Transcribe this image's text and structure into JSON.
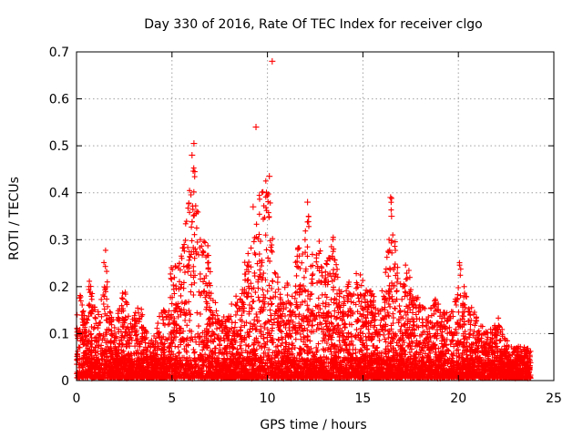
{
  "chart_data": {
    "type": "scatter",
    "title": "Day 330 of 2016, Rate Of TEC Index for receiver clgo",
    "xlabel": "GPS time / hours",
    "ylabel": "ROTI / TECUs",
    "xlim": [
      0,
      25
    ],
    "ylim": [
      0,
      0.7
    ],
    "x_ticks": [
      "0",
      "5",
      "10",
      "15",
      "20",
      "25"
    ],
    "y_ticks": [
      "0",
      "0.1",
      "0.2",
      "0.3",
      "0.4",
      "0.5",
      "0.6",
      "0.7"
    ],
    "grid": true,
    "marker": "+",
    "color": "#ff0000",
    "series": [
      {
        "name": "ROTI",
        "upper_envelope": [
          [
            0.0,
            0.14
          ],
          [
            0.2,
            0.18
          ],
          [
            0.5,
            0.12
          ],
          [
            0.7,
            0.23
          ],
          [
            0.9,
            0.16
          ],
          [
            1.1,
            0.13
          ],
          [
            1.4,
            0.25
          ],
          [
            1.5,
            0.29
          ],
          [
            1.7,
            0.15
          ],
          [
            2.0,
            0.12
          ],
          [
            2.3,
            0.16
          ],
          [
            2.5,
            0.2
          ],
          [
            2.8,
            0.12
          ],
          [
            3.0,
            0.14
          ],
          [
            3.4,
            0.16
          ],
          [
            3.7,
            0.09
          ],
          [
            4.0,
            0.08
          ],
          [
            4.3,
            0.13
          ],
          [
            4.6,
            0.15
          ],
          [
            4.8,
            0.16
          ],
          [
            5.0,
            0.28
          ],
          [
            5.3,
            0.23
          ],
          [
            5.6,
            0.3
          ],
          [
            5.8,
            0.35
          ],
          [
            6.0,
            0.44
          ],
          [
            6.2,
            0.51
          ],
          [
            6.4,
            0.35
          ],
          [
            6.6,
            0.27
          ],
          [
            6.8,
            0.33
          ],
          [
            7.1,
            0.18
          ],
          [
            7.4,
            0.16
          ],
          [
            7.7,
            0.13
          ],
          [
            8.0,
            0.15
          ],
          [
            8.3,
            0.17
          ],
          [
            8.6,
            0.2
          ],
          [
            8.9,
            0.27
          ],
          [
            9.2,
            0.37
          ],
          [
            9.4,
            0.32
          ],
          [
            9.6,
            0.4
          ],
          [
            9.8,
            0.43
          ],
          [
            10.0,
            0.42
          ],
          [
            10.2,
            0.36
          ],
          [
            10.4,
            0.25
          ],
          [
            10.7,
            0.18
          ],
          [
            11.0,
            0.21
          ],
          [
            11.3,
            0.19
          ],
          [
            11.6,
            0.29
          ],
          [
            11.9,
            0.26
          ],
          [
            12.1,
            0.38
          ],
          [
            12.4,
            0.25
          ],
          [
            12.7,
            0.33
          ],
          [
            12.9,
            0.22
          ],
          [
            13.2,
            0.27
          ],
          [
            13.5,
            0.31
          ],
          [
            13.8,
            0.2
          ],
          [
            14.1,
            0.19
          ],
          [
            14.4,
            0.23
          ],
          [
            14.6,
            0.25
          ],
          [
            14.9,
            0.22
          ],
          [
            15.2,
            0.2
          ],
          [
            15.5,
            0.18
          ],
          [
            15.8,
            0.16
          ],
          [
            16.1,
            0.2
          ],
          [
            16.3,
            0.28
          ],
          [
            16.5,
            0.39
          ],
          [
            16.7,
            0.3
          ],
          [
            17.0,
            0.2
          ],
          [
            17.3,
            0.26
          ],
          [
            17.6,
            0.18
          ],
          [
            18.0,
            0.17
          ],
          [
            18.4,
            0.14
          ],
          [
            18.8,
            0.17
          ],
          [
            19.2,
            0.14
          ],
          [
            19.6,
            0.15
          ],
          [
            19.9,
            0.19
          ],
          [
            20.1,
            0.26
          ],
          [
            20.3,
            0.2
          ],
          [
            20.6,
            0.16
          ],
          [
            21.0,
            0.13
          ],
          [
            21.4,
            0.1
          ],
          [
            21.8,
            0.11
          ],
          [
            22.1,
            0.13
          ],
          [
            22.4,
            0.09
          ],
          [
            22.8,
            0.07
          ],
          [
            23.1,
            0.07
          ],
          [
            23.4,
            0.07
          ],
          [
            23.8,
            0.06
          ]
        ],
        "outliers": [
          [
            10.25,
            0.68
          ],
          [
            9.4,
            0.54
          ],
          [
            6.15,
            0.505
          ],
          [
            6.05,
            0.48
          ],
          [
            10.1,
            0.435
          ],
          [
            9.95,
            0.4
          ],
          [
            16.45,
            0.39
          ],
          [
            12.1,
            0.38
          ],
          [
            9.25,
            0.37
          ],
          [
            16.5,
            0.35
          ]
        ]
      }
    ]
  }
}
